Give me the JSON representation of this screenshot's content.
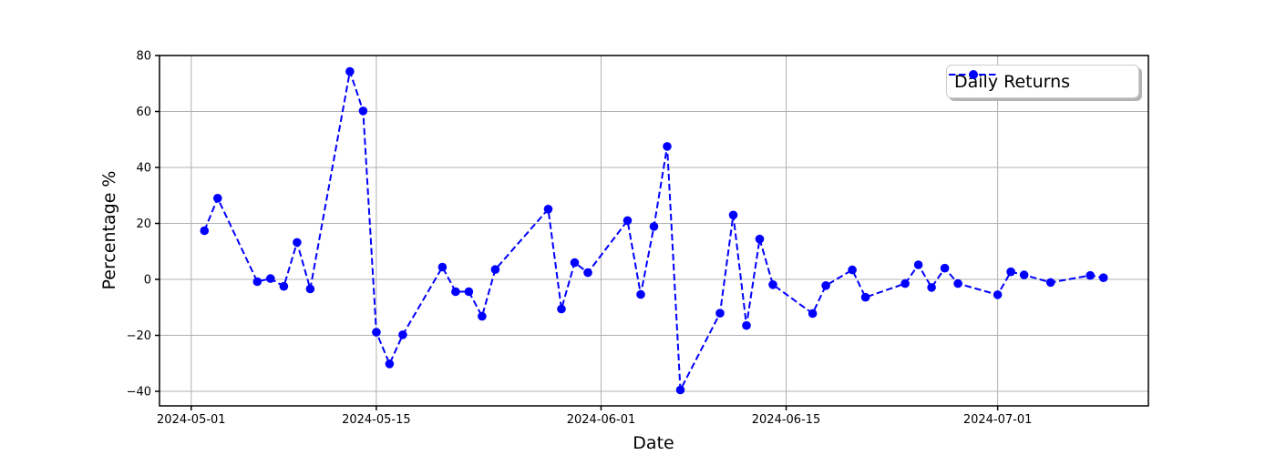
{
  "chart_data": {
    "type": "line",
    "title": "",
    "xlabel": "Date",
    "ylabel": "Percentage %",
    "grid": true,
    "background_color": "#ffffff",
    "axis_color": "#000000",
    "grid_color": "#b0b0b0",
    "legend": {
      "position": "upper right",
      "entries": [
        "Daily Returns"
      ],
      "border_color": "#cccccc",
      "shadow_color": "#b4b4b4"
    },
    "x_axis": {
      "origin": "2024-05-01",
      "range_days": [
        -2.4,
        72.4
      ],
      "ticks": [
        "2024-05-01",
        "2024-05-15",
        "2024-06-01",
        "2024-06-15",
        "2024-07-01"
      ]
    },
    "y_axis": {
      "range": [
        -45.2,
        80.0
      ],
      "ticks": [
        {
          "value": -40,
          "label": "−40"
        },
        {
          "value": -20,
          "label": "−20"
        },
        {
          "value": 0,
          "label": "0"
        },
        {
          "value": 20,
          "label": "20"
        },
        {
          "value": 40,
          "label": "40"
        },
        {
          "value": 60,
          "label": "60"
        },
        {
          "value": 80,
          "label": "80"
        }
      ]
    },
    "series": [
      {
        "name": "Daily Returns",
        "color": "#0000ff",
        "line_style": "dashed",
        "marker": "circle",
        "dates": [
          "2024-05-02",
          "2024-05-03",
          "2024-05-06",
          "2024-05-07",
          "2024-05-08",
          "2024-05-09",
          "2024-05-10",
          "2024-05-13",
          "2024-05-14",
          "2024-05-15",
          "2024-05-16",
          "2024-05-17",
          "2024-05-20",
          "2024-05-21",
          "2024-05-22",
          "2024-05-23",
          "2024-05-24",
          "2024-05-28",
          "2024-05-29",
          "2024-05-30",
          "2024-05-31",
          "2024-06-03",
          "2024-06-04",
          "2024-06-05",
          "2024-06-06",
          "2024-06-07",
          "2024-06-10",
          "2024-06-11",
          "2024-06-12",
          "2024-06-13",
          "2024-06-14",
          "2024-06-17",
          "2024-06-18",
          "2024-06-20",
          "2024-06-21",
          "2024-06-24",
          "2024-06-25",
          "2024-06-26",
          "2024-06-27",
          "2024-06-28",
          "2024-07-01",
          "2024-07-02",
          "2024-07-03",
          "2024-07-05",
          "2024-07-08",
          "2024-07-09"
        ],
        "values": [
          17.4,
          29.0,
          -0.8,
          0.3,
          -2.5,
          13.2,
          -3.4,
          74.3,
          60.2,
          -18.9,
          -30.2,
          -19.8,
          4.4,
          -4.4,
          -4.4,
          -13.2,
          3.5,
          25.1,
          -10.6,
          6.0,
          2.4,
          21.0,
          -5.4,
          18.9,
          47.5,
          -39.5,
          -12.1,
          23.0,
          -16.5,
          14.4,
          -1.9,
          -12.2,
          -2.2,
          3.4,
          -6.4,
          -1.5,
          5.2,
          -2.9,
          4.0,
          -1.5,
          -5.5,
          2.7,
          1.6,
          -1.1,
          1.4,
          0.6
        ]
      }
    ]
  }
}
